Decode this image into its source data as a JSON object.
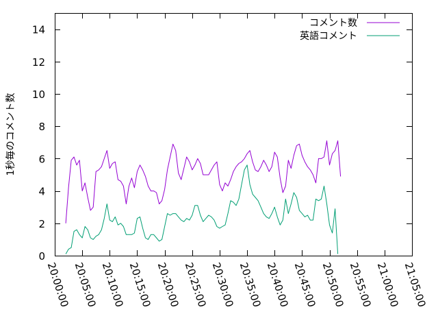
{
  "chart_data": {
    "type": "line",
    "ylabel": "1秒毎のコメント数",
    "xlabel": "",
    "title": "",
    "x_ticks": [
      "20:00:00",
      "20:05:00",
      "20:10:00",
      "20:15:00",
      "20:20:00",
      "20:25:00",
      "20:30:00",
      "20:35:00",
      "20:40:00",
      "20:45:00",
      "20:50:00",
      "20:55:00",
      "21:00:00",
      "21:05:00"
    ],
    "y_ticks": [
      "0",
      "2",
      "4",
      "6",
      "8",
      "10",
      "12",
      "14"
    ],
    "xlim_minutes": [
      0,
      65
    ],
    "ylim": [
      0,
      15
    ],
    "grid": false,
    "legend": "top-right",
    "x_start_minute": 2,
    "x_step_minutes": 0.5,
    "series": [
      {
        "name": "コメント数",
        "color": "#9400d3",
        "values": [
          2.0,
          4.2,
          5.9,
          6.1,
          5.6,
          5.9,
          4.0,
          4.5,
          3.6,
          2.8,
          3.0,
          5.2,
          5.3,
          5.5,
          6.0,
          6.5,
          5.4,
          5.7,
          5.8,
          4.7,
          4.6,
          4.3,
          3.2,
          4.3,
          4.8,
          4.2,
          5.2,
          5.6,
          5.3,
          4.9,
          4.3,
          4.0,
          4.0,
          3.9,
          3.2,
          3.4,
          4.1,
          5.3,
          6.1,
          6.9,
          6.5,
          5.1,
          4.7,
          5.4,
          6.1,
          5.8,
          5.3,
          5.6,
          6.0,
          5.7,
          5.0,
          5.0,
          5.0,
          5.3,
          5.6,
          5.8,
          4.4,
          4.0,
          4.5,
          4.3,
          4.7,
          5.2,
          5.5,
          5.7,
          5.8,
          6.0,
          6.3,
          6.5,
          5.8,
          5.3,
          5.2,
          5.5,
          5.9,
          5.6,
          5.2,
          5.5,
          6.4,
          6.1,
          4.8,
          3.9,
          4.3,
          5.9,
          5.4,
          6.2,
          6.8,
          6.9,
          6.2,
          5.8,
          5.5,
          5.3,
          5.0,
          4.5,
          6.0,
          6.0,
          6.1,
          7.1,
          5.6,
          6.3,
          6.5,
          7.1,
          4.9
        ]
      },
      {
        "name": "英語コメント",
        "color": "#009e73",
        "values": [
          0.1,
          0.4,
          0.5,
          1.5,
          1.6,
          1.3,
          1.1,
          1.8,
          1.6,
          1.1,
          1.0,
          1.2,
          1.3,
          1.6,
          2.3,
          3.2,
          2.2,
          2.1,
          2.4,
          1.9,
          2.0,
          1.8,
          1.3,
          1.3,
          1.3,
          1.4,
          2.3,
          2.4,
          1.7,
          1.1,
          1.0,
          1.3,
          1.3,
          1.1,
          0.9,
          1.0,
          1.8,
          2.6,
          2.5,
          2.6,
          2.6,
          2.4,
          2.2,
          2.1,
          2.3,
          2.2,
          2.5,
          3.1,
          3.1,
          2.5,
          2.1,
          2.3,
          2.5,
          2.4,
          2.2,
          1.8,
          1.7,
          1.8,
          1.9,
          2.6,
          3.4,
          3.3,
          3.1,
          3.5,
          4.4,
          5.3,
          5.6,
          4.4,
          3.8,
          3.6,
          3.4,
          3.0,
          2.6,
          2.4,
          2.3,
          2.6,
          3.0,
          2.4,
          1.9,
          2.2,
          3.5,
          2.6,
          3.2,
          3.9,
          3.6,
          2.8,
          2.6,
          2.4,
          2.5,
          2.2,
          2.2,
          3.5,
          3.4,
          3.5,
          4.3,
          3.2,
          1.9,
          1.4,
          2.9,
          0.1
        ]
      }
    ]
  }
}
